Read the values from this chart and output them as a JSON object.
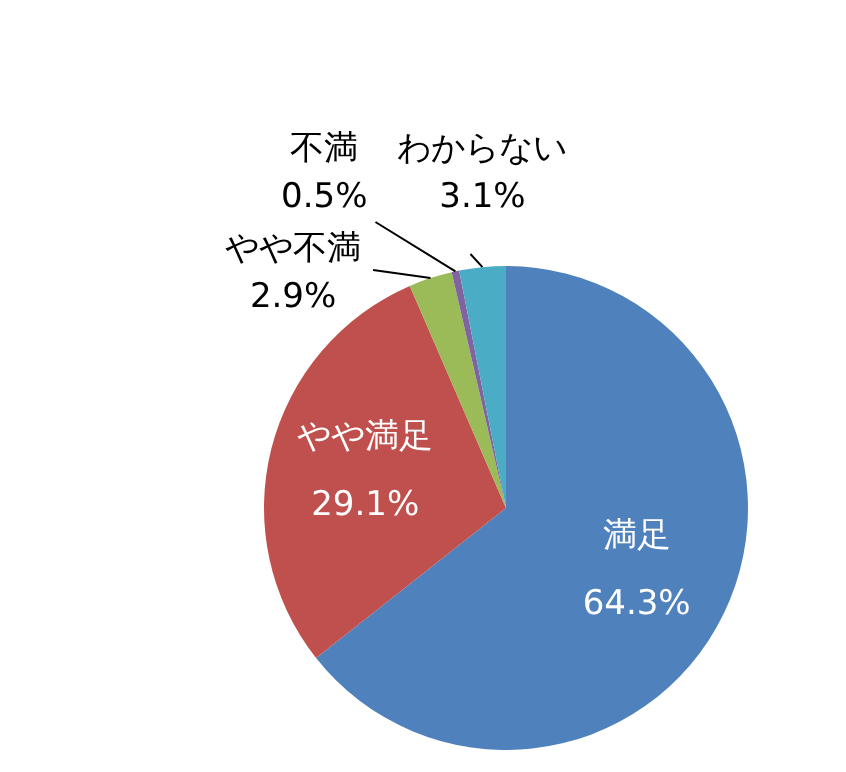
{
  "chart_data": {
    "type": "pie",
    "categories": [
      "満足",
      "やや満足",
      "やや不満",
      "不満",
      "わからない"
    ],
    "values": [
      64.3,
      29.1,
      2.9,
      0.5,
      3.1
    ],
    "value_labels": [
      "64.3%",
      "29.1%",
      "2.9%",
      "0.5%",
      "3.1%"
    ],
    "colors": [
      "#4f81bd",
      "#c0504d",
      "#9bbb59",
      "#8064a2",
      "#4bacc6"
    ],
    "legend": false
  }
}
